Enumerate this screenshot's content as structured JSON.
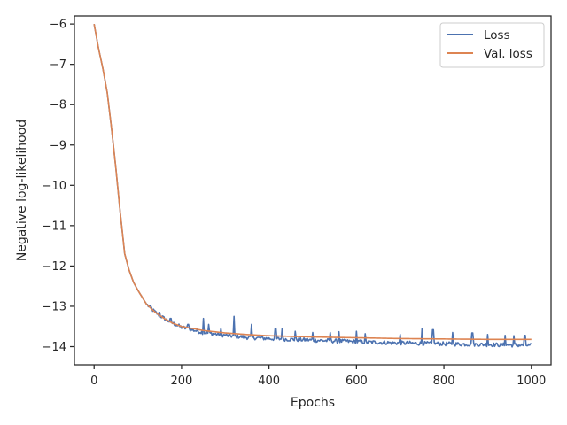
{
  "chart_data": {
    "type": "line",
    "title": "",
    "xlabel": "Epochs",
    "ylabel": "Negative log-likelihood",
    "xlim": [
      -45,
      1045
    ],
    "ylim": [
      -14.45,
      -5.8
    ],
    "xticks": [
      0,
      200,
      400,
      600,
      800,
      1000
    ],
    "yticks": [
      -14,
      -13,
      -12,
      -11,
      -10,
      -9,
      -8,
      -7,
      -6
    ],
    "x_tick_labels": [
      "0",
      "200",
      "400",
      "600",
      "800",
      "1000"
    ],
    "y_tick_labels": [
      "−14",
      "−13",
      "−12",
      "−11",
      "−10",
      "−9",
      "−8",
      "−7",
      "−6"
    ],
    "grid": false,
    "legend_position": "top-right",
    "series": [
      {
        "name": "Loss",
        "color": "#4c72b0",
        "noisy": true,
        "x": [
          0,
          10,
          20,
          30,
          40,
          50,
          60,
          70,
          80,
          90,
          100,
          120,
          140,
          160,
          180,
          200,
          250,
          300,
          350,
          400,
          500,
          600,
          700,
          800,
          900,
          1000
        ],
        "y": [
          -6.0,
          -6.6,
          -7.1,
          -7.7,
          -8.6,
          -9.6,
          -10.7,
          -11.7,
          -12.1,
          -12.4,
          -12.6,
          -12.95,
          -13.15,
          -13.3,
          -13.42,
          -13.52,
          -13.65,
          -13.72,
          -13.77,
          -13.8,
          -13.84,
          -13.88,
          -13.91,
          -13.93,
          -13.95,
          -13.97
        ],
        "spikes": [
          {
            "x": 130,
            "y": -13.0
          },
          {
            "x": 150,
            "y": -13.15
          },
          {
            "x": 175,
            "y": -13.3
          },
          {
            "x": 215,
            "y": -13.45
          },
          {
            "x": 250,
            "y": -13.3
          },
          {
            "x": 262,
            "y": -13.45
          },
          {
            "x": 290,
            "y": -13.55
          },
          {
            "x": 320,
            "y": -13.25
          },
          {
            "x": 360,
            "y": -13.45
          },
          {
            "x": 415,
            "y": -13.55
          },
          {
            "x": 430,
            "y": -13.55
          },
          {
            "x": 460,
            "y": -13.62
          },
          {
            "x": 500,
            "y": -13.65
          },
          {
            "x": 540,
            "y": -13.65
          },
          {
            "x": 560,
            "y": -13.63
          },
          {
            "x": 600,
            "y": -13.62
          },
          {
            "x": 620,
            "y": -13.68
          },
          {
            "x": 700,
            "y": -13.7
          },
          {
            "x": 750,
            "y": -13.55
          },
          {
            "x": 775,
            "y": -13.58
          },
          {
            "x": 820,
            "y": -13.65
          },
          {
            "x": 865,
            "y": -13.66
          },
          {
            "x": 900,
            "y": -13.7
          },
          {
            "x": 940,
            "y": -13.72
          },
          {
            "x": 960,
            "y": -13.73
          },
          {
            "x": 985,
            "y": -13.72
          }
        ]
      },
      {
        "name": "Val. loss",
        "color": "#dd8452",
        "noisy": false,
        "x": [
          0,
          10,
          20,
          30,
          40,
          50,
          60,
          70,
          80,
          90,
          100,
          120,
          140,
          160,
          180,
          200,
          250,
          300,
          350,
          400,
          500,
          600,
          700,
          800,
          900,
          1000
        ],
        "y": [
          -6.0,
          -6.6,
          -7.1,
          -7.7,
          -8.6,
          -9.6,
          -10.7,
          -11.7,
          -12.1,
          -12.4,
          -12.6,
          -12.95,
          -13.15,
          -13.3,
          -13.42,
          -13.5,
          -13.6,
          -13.66,
          -13.7,
          -13.73,
          -13.76,
          -13.78,
          -13.8,
          -13.81,
          -13.82,
          -13.82
        ]
      }
    ]
  }
}
